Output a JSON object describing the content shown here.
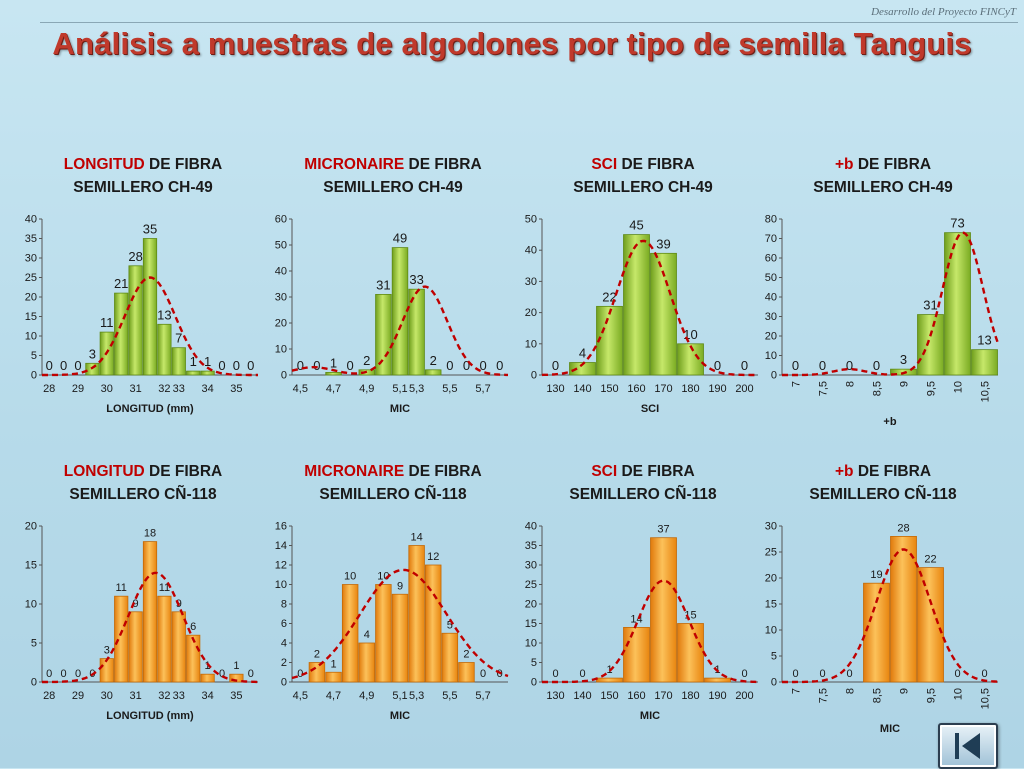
{
  "header": {
    "source": "Desarrollo del Proyecto FINCyT",
    "title": "Análisis a muestras de algodones por tipo de semilla Tanguis"
  },
  "navigation": {
    "first_slide_icon": "skip-to-first-icon"
  },
  "colors": {
    "title": "#c0392b",
    "highlight": "#c00000",
    "green_bar": "#8cbf2a",
    "orange_bar": "#f59a1f",
    "curve": "#c00000"
  },
  "chart_data": [
    {
      "type": "bar",
      "title_highlight": "LONGITUD",
      "title_rest": " DE FIBRA",
      "subtitle": "SEMILLERO CH-49",
      "xlabel": "LONGITUD (mm)",
      "ylabel": "",
      "ylim": [
        0,
        40
      ],
      "ystep": 5,
      "style": "green",
      "categories": [
        "28",
        "28,5",
        "29",
        "29,5",
        "30",
        "30,5",
        "31",
        "31,5",
        "32",
        "32,5",
        "33",
        "33,5",
        "34",
        "34,5",
        "35"
      ],
      "tick_labels": [
        "28",
        "29",
        "30",
        "31",
        "32",
        "33",
        "34",
        "35"
      ],
      "label_rotate": false,
      "values": [
        0,
        0,
        0,
        3,
        11,
        21,
        28,
        35,
        13,
        7,
        1,
        1,
        0,
        0,
        0
      ],
      "curve": [
        [
          -0.2,
          2
        ],
        [
          0.5,
          0
        ],
        [
          13.6,
          0
        ],
        [
          14.2,
          2
        ]
      ],
      "curve_mu": 7.0,
      "curve_sigma": 1.75,
      "curve_peak": 25
    },
    {
      "type": "bar",
      "title_highlight": "MICRONAIRE",
      "title_rest": " DE FIBRA",
      "subtitle": "SEMILLERO CH-49",
      "xlabel": "MIC",
      "ylabel": "",
      "ylim": [
        0,
        60
      ],
      "ystep": 10,
      "style": "green",
      "categories": [
        "4,5",
        "4,6",
        "4,7",
        "4,8",
        "4,9",
        "5",
        "5,1",
        "5,2",
        "5,3",
        "5,4",
        "5,5",
        "5,6",
        "5,7"
      ],
      "tick_labels": [
        "4,5",
        "4,7",
        "4,9",
        "5,1",
        "5,3",
        "5,5",
        "5,7"
      ],
      "label_rotate": false,
      "values": [
        0,
        0,
        1,
        0,
        2,
        31,
        49,
        33,
        2,
        0,
        0,
        0,
        0
      ],
      "curve_bumps": [
        [
          0.8,
          1.2,
          3
        ]
      ],
      "curve_mu": 7.5,
      "curve_sigma": 1.35,
      "curve_peak": 34
    },
    {
      "type": "bar",
      "title_highlight": "SCI",
      "title_rest": " DE FIBRA",
      "subtitle": "SEMILLERO CH-49",
      "xlabel": "SCI",
      "ylabel": "",
      "ylim": [
        0,
        50
      ],
      "ystep": 10,
      "style": "green",
      "categories": [
        "130",
        "140",
        "150",
        "160",
        "170",
        "180",
        "190",
        "200"
      ],
      "tick_labels": [
        "130",
        "140",
        "150",
        "160",
        "170",
        "180",
        "190",
        "200"
      ],
      "label_rotate": false,
      "values": [
        0,
        4,
        22,
        45,
        39,
        10,
        0,
        0
      ],
      "curve_mu": 3.25,
      "curve_sigma": 1.0,
      "curve_peak": 43
    },
    {
      "type": "bar",
      "title_highlight": "+b",
      "title_rest": " DE FIBRA",
      "subtitle": "SEMILLERO CH-49",
      "xlabel": "+b",
      "ylabel": "",
      "ylim": [
        0,
        80
      ],
      "ystep": 10,
      "style": "green",
      "categories": [
        "7",
        "7,5",
        "8",
        "8,5",
        "9",
        "9,5",
        "10",
        "10,5"
      ],
      "tick_labels": [
        "7",
        "7,5",
        "8",
        "8,5",
        "9",
        "9,5",
        "10",
        "10,5"
      ],
      "label_rotate": true,
      "values": [
        0,
        0,
        0,
        0,
        3,
        31,
        73,
        13
      ],
      "curve_bumps": [
        [
          2.0,
          0.6,
          3
        ]
      ],
      "curve_mu": 6.2,
      "curve_sigma": 0.75,
      "curve_peak": 73
    },
    {
      "type": "bar",
      "title_highlight": "LONGITUD",
      "title_rest": " DE FIBRA",
      "subtitle": "SEMILLERO CÑ-118",
      "xlabel": "LONGITUD (mm)",
      "ylabel": "",
      "ylim": [
        0,
        20
      ],
      "ystep": 5,
      "style": "orange",
      "categories": [
        "28",
        "28,5",
        "29",
        "29,5",
        "30",
        "30,5",
        "31",
        "31,5",
        "32",
        "32,5",
        "33",
        "33,5",
        "34",
        "34,5",
        "35"
      ],
      "tick_labels": [
        "28",
        "29",
        "30",
        "31",
        "32",
        "33",
        "34",
        "35"
      ],
      "label_rotate": false,
      "values": [
        0,
        0,
        0,
        0,
        3,
        11,
        9,
        18,
        11,
        9,
        6,
        1,
        0,
        1,
        0
      ],
      "curve_mu": 7.4,
      "curve_sigma": 1.9,
      "curve_peak": 14
    },
    {
      "type": "bar",
      "title_highlight": "MICRONAIRE",
      "title_rest": " DE FIBRA",
      "subtitle": "SEMILLERO CÑ-118",
      "xlabel": "MIC",
      "ylabel": "",
      "ylim": [
        0,
        16
      ],
      "ystep": 2,
      "style": "orange",
      "categories": [
        "4,5",
        "4,6",
        "4,7",
        "4,8",
        "4,9",
        "5",
        "5,1",
        "5,2",
        "5,3",
        "5,4",
        "5,5",
        "5,6",
        "5,7"
      ],
      "tick_labels": [
        "4,5",
        "4,7",
        "4,9",
        "5,1",
        "5,3",
        "5,5",
        "5,7"
      ],
      "label_rotate": false,
      "values": [
        0,
        2,
        1,
        10,
        4,
        10,
        9,
        14,
        12,
        5,
        2,
        0,
        0
      ],
      "curve_mu": 6.2,
      "curve_sigma": 2.6,
      "curve_peak": 11.5
    },
    {
      "type": "bar",
      "title_highlight": "SCI",
      "title_rest": " DE FIBRA",
      "subtitle": "SEMILLERO CÑ-118",
      "xlabel": "MIC",
      "ylabel": "",
      "ylim": [
        0,
        40
      ],
      "ystep": 5,
      "style": "orange",
      "categories": [
        "130",
        "140",
        "150",
        "160",
        "170",
        "180",
        "190",
        "200"
      ],
      "tick_labels": [
        "130",
        "140",
        "150",
        "160",
        "170",
        "180",
        "190",
        "200"
      ],
      "label_rotate": false,
      "values": [
        0,
        0,
        1,
        14,
        37,
        15,
        1,
        0
      ],
      "curve_mu": 4.0,
      "curve_sigma": 0.95,
      "curve_peak": 26
    },
    {
      "type": "bar",
      "title_highlight": "+b",
      "title_rest": " DE FIBRA",
      "subtitle": "SEMILLERO CÑ-118",
      "xlabel": "MIC",
      "ylabel": "",
      "ylim": [
        0,
        30
      ],
      "ystep": 5,
      "style": "orange",
      "categories": [
        "7",
        "7,5",
        "8",
        "8,5",
        "9",
        "9,5",
        "10",
        "10,5"
      ],
      "tick_labels": [
        "7",
        "7,5",
        "8",
        "8,5",
        "9",
        "9,5",
        "10",
        "10,5"
      ],
      "label_rotate": true,
      "values": [
        0,
        0,
        0,
        19,
        28,
        22,
        0,
        0
      ],
      "curve_mu": 4.0,
      "curve_sigma": 1.0,
      "curve_peak": 25.5
    }
  ]
}
